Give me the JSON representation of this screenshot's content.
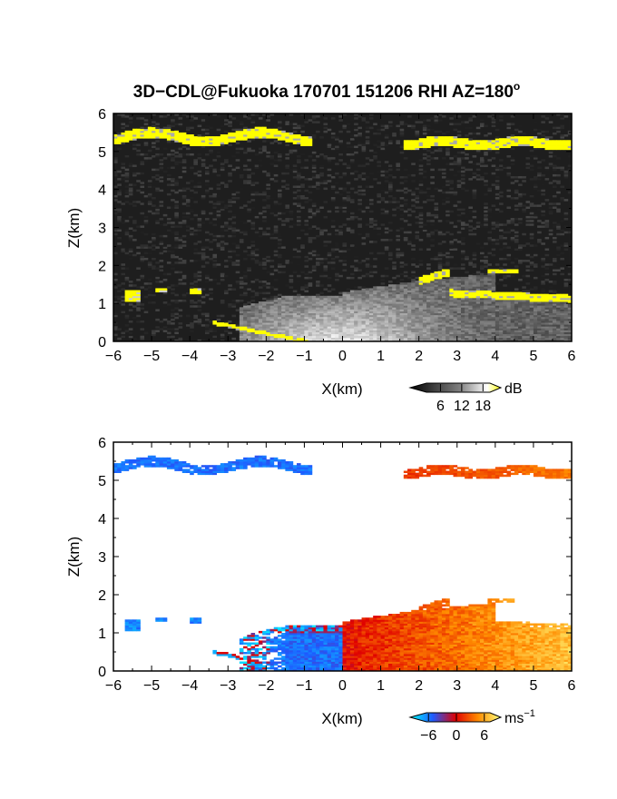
{
  "title": "3D−CDL@Fukuoka 170701 151206 RHI AZ=180",
  "title_superscript": "o",
  "chart_data": [
    {
      "type": "heatmap",
      "name_printed": "",
      "quantity_unit": "dB",
      "xlabel": "X(km)",
      "ylabel": "Z(km)",
      "xlim": [
        -6,
        6
      ],
      "ylim": [
        0,
        6
      ],
      "x_ticks": [
        "−6",
        "−5",
        "−4",
        "−3",
        "−2",
        "−1",
        "0",
        "1",
        "2",
        "3",
        "4",
        "5",
        "6"
      ],
      "y_ticks": [
        "0",
        "1",
        "2",
        "3",
        "4",
        "5",
        "6"
      ],
      "colorbar": {
        "ticks": [
          "6",
          "12",
          "18"
        ],
        "unit": "dB",
        "range": [
          0,
          21
        ]
      },
      "colors": {
        "background": "#1e1e1e",
        "low": "#333333",
        "high": "#ffffff",
        "saturated": "#ffff00"
      },
      "regions": [
        {
          "label": "cloud layer",
          "x": [
            -6,
            -0.8
          ],
          "z": [
            5.2,
            5.6
          ],
          "level": "saturated"
        },
        {
          "label": "cloud layer",
          "x": [
            1.6,
            6
          ],
          "z": [
            5.1,
            5.4
          ],
          "level": "saturated"
        },
        {
          "label": "boundary layer",
          "x": [
            -2.5,
            4
          ],
          "z": [
            0,
            1.4
          ],
          "level": "high"
        },
        {
          "label": "elevated echo",
          "x": [
            2,
            6
          ],
          "z": [
            1,
            1.9
          ],
          "level": "saturated"
        },
        {
          "label": "near-surface echo",
          "x": [
            -3.4,
            -0.9
          ],
          "z": [
            0,
            0.5
          ],
          "level": "saturated"
        }
      ]
    },
    {
      "type": "heatmap",
      "quantity_unit": "ms",
      "quantity_unit_superscript": "−1",
      "xlabel": "X(km)",
      "ylabel": "Z(km)",
      "xlim": [
        -6,
        6
      ],
      "ylim": [
        0,
        6
      ],
      "x_ticks": [
        "−6",
        "−5",
        "−4",
        "−3",
        "−2",
        "−1",
        "0",
        "1",
        "2",
        "3",
        "4",
        "5",
        "6"
      ],
      "y_ticks": [
        "0",
        "1",
        "2",
        "3",
        "4",
        "5",
        "6"
      ],
      "colorbar": {
        "ticks": [
          "−6",
          "0",
          "6"
        ],
        "range": [
          -8,
          8
        ]
      },
      "colors": {
        "background": "#ffffff",
        "negative_strong": "#00e5ff",
        "negative": "#1060ff",
        "zero": "#e00000",
        "positive": "#ff8000",
        "positive_strong": "#ffff80"
      },
      "regions": [
        {
          "label": "cloud layer",
          "x": [
            -6,
            -0.8
          ],
          "z": [
            5.2,
            5.6
          ],
          "velocity": -4.5
        },
        {
          "label": "cloud layer",
          "x": [
            1.6,
            6
          ],
          "z": [
            5.1,
            5.4
          ],
          "velocity": 2.5
        },
        {
          "label": "boundary layer",
          "x": [
            -2,
            0
          ],
          "z": [
            0,
            1
          ],
          "velocity": -4
        },
        {
          "label": "boundary layer",
          "x": [
            0,
            4
          ],
          "z": [
            0,
            1.6
          ],
          "velocity": 2
        },
        {
          "label": "boundary layer",
          "x": [
            4,
            6
          ],
          "z": [
            0.8,
            1.2
          ],
          "velocity": 5
        }
      ]
    }
  ]
}
